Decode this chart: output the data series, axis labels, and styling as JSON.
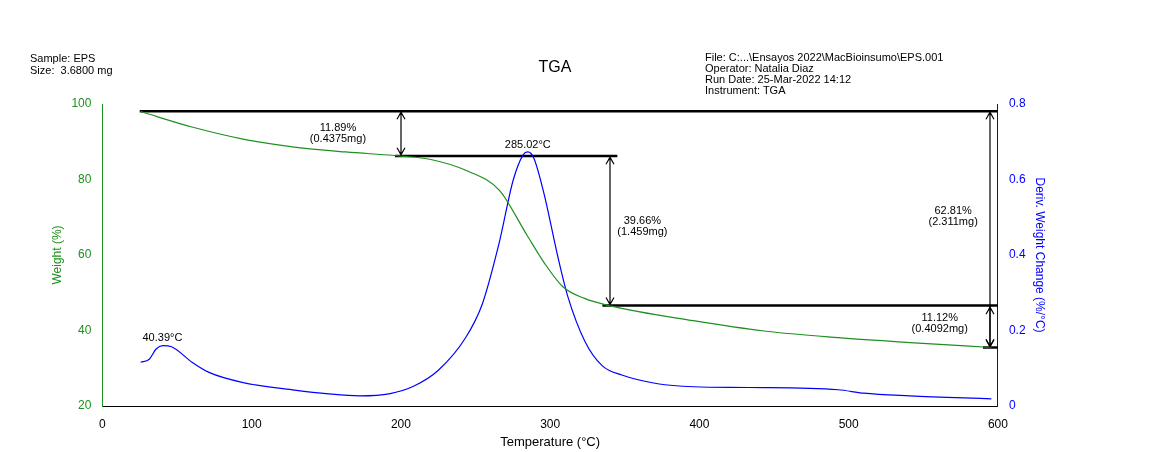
{
  "chart_data": {
    "type": "line",
    "title": "TGA",
    "subtitle": "Sample: EPS\nSize:  3.6800 mg",
    "xlabel": "Temperature (°C)",
    "ylabel": "Weight (%)",
    "y2label": "Deriv. Weight Change (%/°C)",
    "xlim": [
      0,
      600
    ],
    "xticks": [
      0,
      100,
      200,
      300,
      400,
      500,
      600
    ],
    "ylim": [
      20,
      100
    ],
    "yticks": [
      20,
      40,
      60,
      80,
      100
    ],
    "y2lim": [
      0,
      0.8
    ],
    "y2ticks": [
      0,
      0.2,
      0.4,
      0.6,
      0.8
    ],
    "series": [
      {
        "color": "#1f8f1f",
        "axis": "y",
        "x": [
          25.6,
          60,
          94.3,
          128.7,
          163,
          200,
          220,
          243,
          266,
          284.4,
          295.9,
          308.5,
          323,
          339.4,
          396,
          444.7,
          493,
          541,
          595.6
        ],
        "values": [
          98.0,
          93.9,
          90.7,
          88.6,
          87.3,
          86.2,
          85.3,
          82.5,
          77.1,
          65.3,
          58.0,
          51.6,
          48.5,
          46.6,
          42.6,
          39.8,
          38.1,
          36.8,
          35.5
        ]
      },
      {
        "color": "#0000ff",
        "axis": "y2",
        "x": [
          25.6,
          31.4,
          36,
          40.4,
          46.3,
          60,
          71.4,
          94.3,
          128.7,
          151.6,
          172.2,
          192.8,
          208.8,
          224.9,
          243.2,
          254.6,
          266,
          275.2,
          282,
          285,
          289,
          295.9,
          305,
          311.9,
          323.3,
          334.8,
          348,
          372,
          396,
          432.6,
          493,
          510,
          541,
          595.6
        ],
        "values": [
          0.116,
          0.124,
          0.151,
          0.16,
          0.157,
          0.116,
          0.089,
          0.062,
          0.042,
          0.032,
          0.027,
          0.033,
          0.053,
          0.094,
          0.18,
          0.271,
          0.435,
          0.598,
          0.666,
          0.673,
          0.657,
          0.562,
          0.398,
          0.289,
          0.171,
          0.107,
          0.082,
          0.059,
          0.051,
          0.049,
          0.043,
          0.034,
          0.027,
          0.019
        ]
      },
      {
        "color": "#000000",
        "axis": "y",
        "x": [
          25,
          600
        ],
        "values": [
          98.1,
          98.1
        ]
      },
      {
        "color": "#000000",
        "axis": "y",
        "x": [
          196,
          345
        ],
        "values": [
          86.2,
          86.2
        ]
      },
      {
        "color": "#000000",
        "axis": "y",
        "x": [
          335,
          600
        ],
        "values": [
          46.6,
          46.6
        ]
      },
      {
        "color": "#000000",
        "axis": "y",
        "x": [
          590,
          600
        ],
        "values": [
          35.5,
          35.5
        ]
      }
    ],
    "annotations": [
      "File: C:...\\Ensayos 2022\\MacBioinsumo\\EPS.001\nOperator: Natalia Diaz\nRun Date: 25-Mar-2022 14:12\nInstrument: TGA",
      "11.89%\n(0.4375mg)",
      "285.02°C",
      "40.39°C",
      "39.66%\n(1.459mg)",
      "62.81%\n(2.311mg)",
      "11.12%\n(0.4092mg)"
    ]
  }
}
